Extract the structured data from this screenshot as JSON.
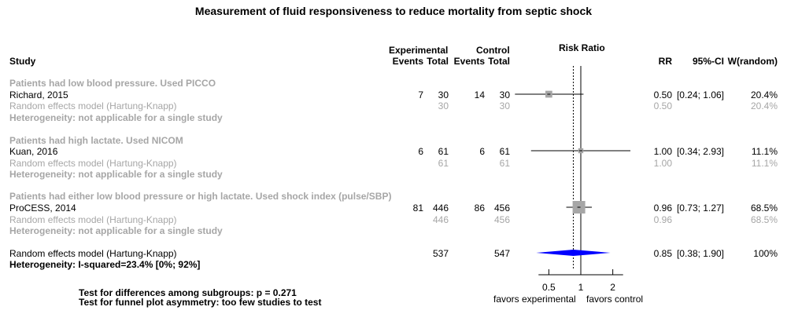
{
  "chart_data": {
    "type": "forest",
    "title": "Measurement of fluid responsiveness to reduce mortality from septic shock",
    "headers": {
      "study": "Study",
      "experimental": "Experimental",
      "control": "Control",
      "events": "Events",
      "total": "Total",
      "risk_ratio": "Risk Ratio",
      "rr": "RR",
      "ci": "95%-CI",
      "weight": "W(random)"
    },
    "subgroups": [
      {
        "label": "Patients had low blood pressure. Used PICCO",
        "study": {
          "name": "Richard, 2015",
          "exp_events": "7",
          "exp_total": "30",
          "ctrl_events": "14",
          "ctrl_total": "30",
          "rr_text": "0.50",
          "ci_text": "[0.24; 1.06]",
          "weight_text": "20.4%",
          "rr": 0.5,
          "lower": 0.24,
          "upper": 1.06,
          "weight": 20.4
        },
        "model": {
          "name": "Random effects model  (Hartung-Knapp)",
          "exp_total": "30",
          "ctrl_total": "30",
          "rr_text": "0.50",
          "weight_text": "20.4%"
        },
        "heterogeneity": "Heterogeneity: not applicable for a single study"
      },
      {
        "label": "Patients had high lactate. Used NICOM",
        "study": {
          "name": "Kuan, 2016",
          "exp_events": "6",
          "exp_total": "61",
          "ctrl_events": "6",
          "ctrl_total": "61",
          "rr_text": "1.00",
          "ci_text": "[0.34; 2.93]",
          "weight_text": "11.1%",
          "rr": 1.0,
          "lower": 0.34,
          "upper": 2.93,
          "weight": 11.1
        },
        "model": {
          "name": "Random effects model  (Hartung-Knapp)",
          "exp_total": "61",
          "ctrl_total": "61",
          "rr_text": "1.00",
          "weight_text": "11.1%"
        },
        "heterogeneity": "Heterogeneity: not applicable for a single study"
      },
      {
        "label": "Patients had either low blood pressure or high lactate. Used shock index (pulse/SBP)",
        "study": {
          "name": "ProCESS, 2014",
          "exp_events": "81",
          "exp_total": "446",
          "ctrl_events": "86",
          "ctrl_total": "456",
          "rr_text": "0.96",
          "ci_text": "[0.73; 1.27]",
          "weight_text": "68.5%",
          "rr": 0.96,
          "lower": 0.73,
          "upper": 1.27,
          "weight": 68.5
        },
        "model": {
          "name": "Random effects model  (Hartung-Knapp)",
          "exp_total": "446",
          "ctrl_total": "456",
          "rr_text": "0.96",
          "weight_text": "68.5%"
        },
        "heterogeneity": "Heterogeneity: not applicable for a single study"
      }
    ],
    "overall": {
      "name": "Random effects model  (Hartung-Knapp)",
      "exp_total": "537",
      "ctrl_total": "547",
      "rr_text": "0.85",
      "ci_text": "[0.38; 1.90]",
      "weight_text": "100%",
      "rr": 0.85,
      "lower": 0.38,
      "upper": 1.9,
      "heterogeneity": "Heterogeneity: I-squared=23.4% [0%; 92%]"
    },
    "x_scale": "log",
    "x_ticks": [
      {
        "value": 0.5,
        "label": "0.5"
      },
      {
        "value": 1,
        "label": "1"
      },
      {
        "value": 2,
        "label": "2"
      }
    ],
    "xlim": [
      0.4,
      2.5
    ],
    "null_value": 1,
    "favors_left": "favors experimental",
    "favors_right": "favors control",
    "footnotes": [
      "Test for differences among subgroups: p = 0.271",
      "Test for funnel plot asymmetry: too few studies to test"
    ],
    "colors": {
      "square": "#a6a6a6",
      "diamond": "#0000ff",
      "muted_text": "#a6a6a6"
    }
  }
}
